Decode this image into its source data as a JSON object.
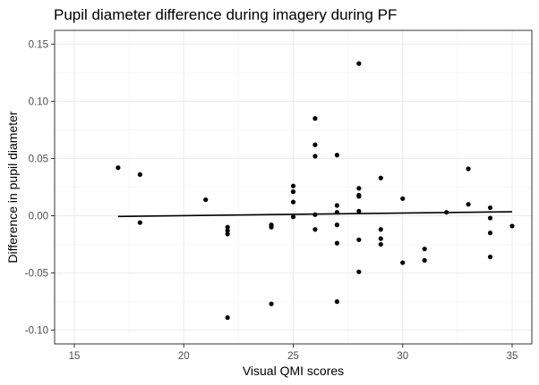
{
  "chart_data": {
    "type": "scatter",
    "title": "Pupil diameter difference during imagery during PF",
    "xlabel": "Visual QMI scores",
    "ylabel": "Difference in pupil diameter",
    "xlim": [
      14.1,
      35.9
    ],
    "ylim": [
      -0.112,
      0.162
    ],
    "x_ticks": [
      15,
      20,
      25,
      30,
      35
    ],
    "y_ticks": [
      -0.1,
      -0.05,
      0.0,
      0.05,
      0.1,
      0.15
    ],
    "x_tick_labels": [
      "15",
      "20",
      "25",
      "30",
      "35"
    ],
    "y_tick_labels": [
      "-0.10",
      "-0.05",
      "0.00",
      "0.05",
      "0.10",
      "0.15"
    ],
    "grid": true,
    "points": [
      {
        "x": 17,
        "y": 0.042
      },
      {
        "x": 18,
        "y": 0.036
      },
      {
        "x": 18,
        "y": -0.006
      },
      {
        "x": 21,
        "y": 0.014
      },
      {
        "x": 22,
        "y": -0.01
      },
      {
        "x": 22,
        "y": -0.013
      },
      {
        "x": 22,
        "y": -0.016
      },
      {
        "x": 22,
        "y": -0.089
      },
      {
        "x": 24,
        "y": -0.008
      },
      {
        "x": 24,
        "y": -0.01
      },
      {
        "x": 24,
        "y": -0.077
      },
      {
        "x": 25,
        "y": 0.026
      },
      {
        "x": 25,
        "y": 0.021
      },
      {
        "x": 25,
        "y": 0.012
      },
      {
        "x": 25,
        "y": -0.001
      },
      {
        "x": 26,
        "y": 0.085
      },
      {
        "x": 26,
        "y": 0.062
      },
      {
        "x": 26,
        "y": 0.052
      },
      {
        "x": 26,
        "y": 0.001
      },
      {
        "x": 26,
        "y": -0.012
      },
      {
        "x": 27,
        "y": 0.053
      },
      {
        "x": 27,
        "y": 0.009
      },
      {
        "x": 27,
        "y": 0.003
      },
      {
        "x": 27,
        "y": -0.008
      },
      {
        "x": 27,
        "y": -0.024
      },
      {
        "x": 27,
        "y": -0.075
      },
      {
        "x": 28,
        "y": 0.133
      },
      {
        "x": 28,
        "y": 0.024
      },
      {
        "x": 28,
        "y": 0.018
      },
      {
        "x": 28,
        "y": 0.017
      },
      {
        "x": 28,
        "y": 0.004
      },
      {
        "x": 28,
        "y": -0.021
      },
      {
        "x": 28,
        "y": -0.049
      },
      {
        "x": 29,
        "y": 0.033
      },
      {
        "x": 29,
        "y": -0.012
      },
      {
        "x": 29,
        "y": -0.02
      },
      {
        "x": 29,
        "y": -0.025
      },
      {
        "x": 30,
        "y": 0.015
      },
      {
        "x": 30,
        "y": -0.041
      },
      {
        "x": 31,
        "y": -0.029
      },
      {
        "x": 31,
        "y": -0.039
      },
      {
        "x": 32,
        "y": 0.003
      },
      {
        "x": 33,
        "y": 0.041
      },
      {
        "x": 33,
        "y": 0.01
      },
      {
        "x": 34,
        "y": 0.007
      },
      {
        "x": 34,
        "y": -0.002
      },
      {
        "x": 34,
        "y": -0.015
      },
      {
        "x": 34,
        "y": -0.036
      },
      {
        "x": 35,
        "y": -0.009
      }
    ],
    "fit_line": {
      "x": [
        17,
        35
      ],
      "y": [
        -0.0006,
        0.0035
      ]
    }
  }
}
